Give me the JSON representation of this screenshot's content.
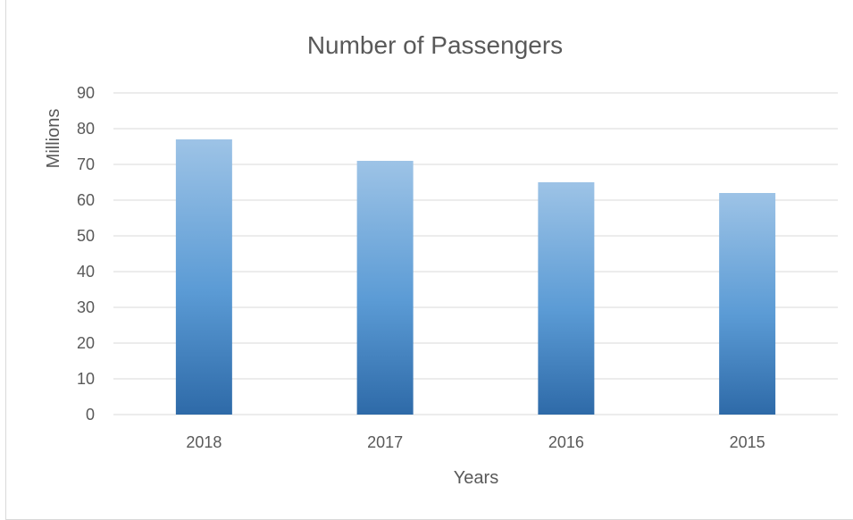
{
  "chart_data": {
    "type": "bar",
    "title": "Number of Passengers",
    "xlabel": "Years",
    "ylabel": "Millions",
    "categories": [
      "2018",
      "2017",
      "2016",
      "2015"
    ],
    "values": [
      77,
      71,
      65,
      62
    ],
    "ylim": [
      0,
      90
    ],
    "yticks": [
      "0",
      "10",
      "20",
      "30",
      "40",
      "50",
      "60",
      "70",
      "80",
      "90"
    ],
    "grid": true,
    "bar_gradient": {
      "top": "#9dc3e6",
      "bottom": "#2e6aa8"
    }
  }
}
